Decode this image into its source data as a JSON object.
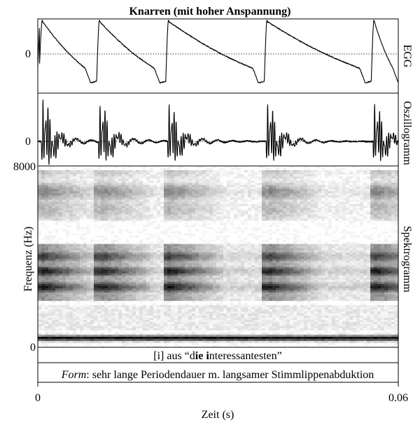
{
  "chart_data": {
    "type": "line",
    "title": "Knarren (mit hoher Anspannung)",
    "xlabel": "Zeit (s)",
    "xlim": [
      0,
      0.06
    ],
    "x_ticks": [
      "0",
      "0.06"
    ],
    "grid": false,
    "legend": "none",
    "panels": [
      {
        "id": "egg",
        "type": "line",
        "label": "EGG",
        "y_ticks": [
          "0"
        ],
        "series": [
          {
            "pulse_onsets_s": [
              0.0003,
              0.0098,
              0.0213,
              0.0377,
              0.0555
            ],
            "peak_s": [
              0.0008,
              0.0103,
              0.0218,
              0.0382,
              0.056
            ],
            "minimum_s": [
              0.0088,
              0.0203,
              0.0367,
              0.0545,
              0.06
            ]
          }
        ]
      },
      {
        "id": "oscillogram",
        "type": "line",
        "label": "Oszillogramm",
        "y_ticks": [
          "0"
        ],
        "series": [
          {
            "excitation_times_s": [
              0.0008,
              0.0103,
              0.0218,
              0.0382,
              0.056
            ]
          }
        ]
      },
      {
        "id": "spectrogram",
        "type": "heatmap",
        "label": "Spektrogramm",
        "ylabel": "Frequenz (Hz)",
        "y_ticks": [
          "8000",
          "0"
        ],
        "ylim": [
          0,
          8000
        ],
        "darkness_scale": "white = low energy, black = high energy",
        "formant_bands_hz": [
          {
            "center": 400,
            "darkness": 1.0,
            "width": 120
          },
          {
            "center": 2650,
            "darkness": 0.95,
            "width": 300
          },
          {
            "center": 3350,
            "darkness": 0.95,
            "width": 280
          },
          {
            "center": 4000,
            "darkness": 0.8,
            "width": 320
          },
          {
            "center": 6850,
            "darkness": 0.5,
            "width": 420
          }
        ],
        "pulse_times_s": [
          0.0008,
          0.0103,
          0.0218,
          0.0382,
          0.056
        ]
      }
    ]
  },
  "annotations": {
    "segment_prefix": "[i] aus “d",
    "segment_bold_1": "ie i",
    "segment_suffix": "nteressantesten”",
    "form_label": "Form",
    "form_text": ": sehr lange Periodendauer m. langsamer Stimmlippenabduktion"
  }
}
